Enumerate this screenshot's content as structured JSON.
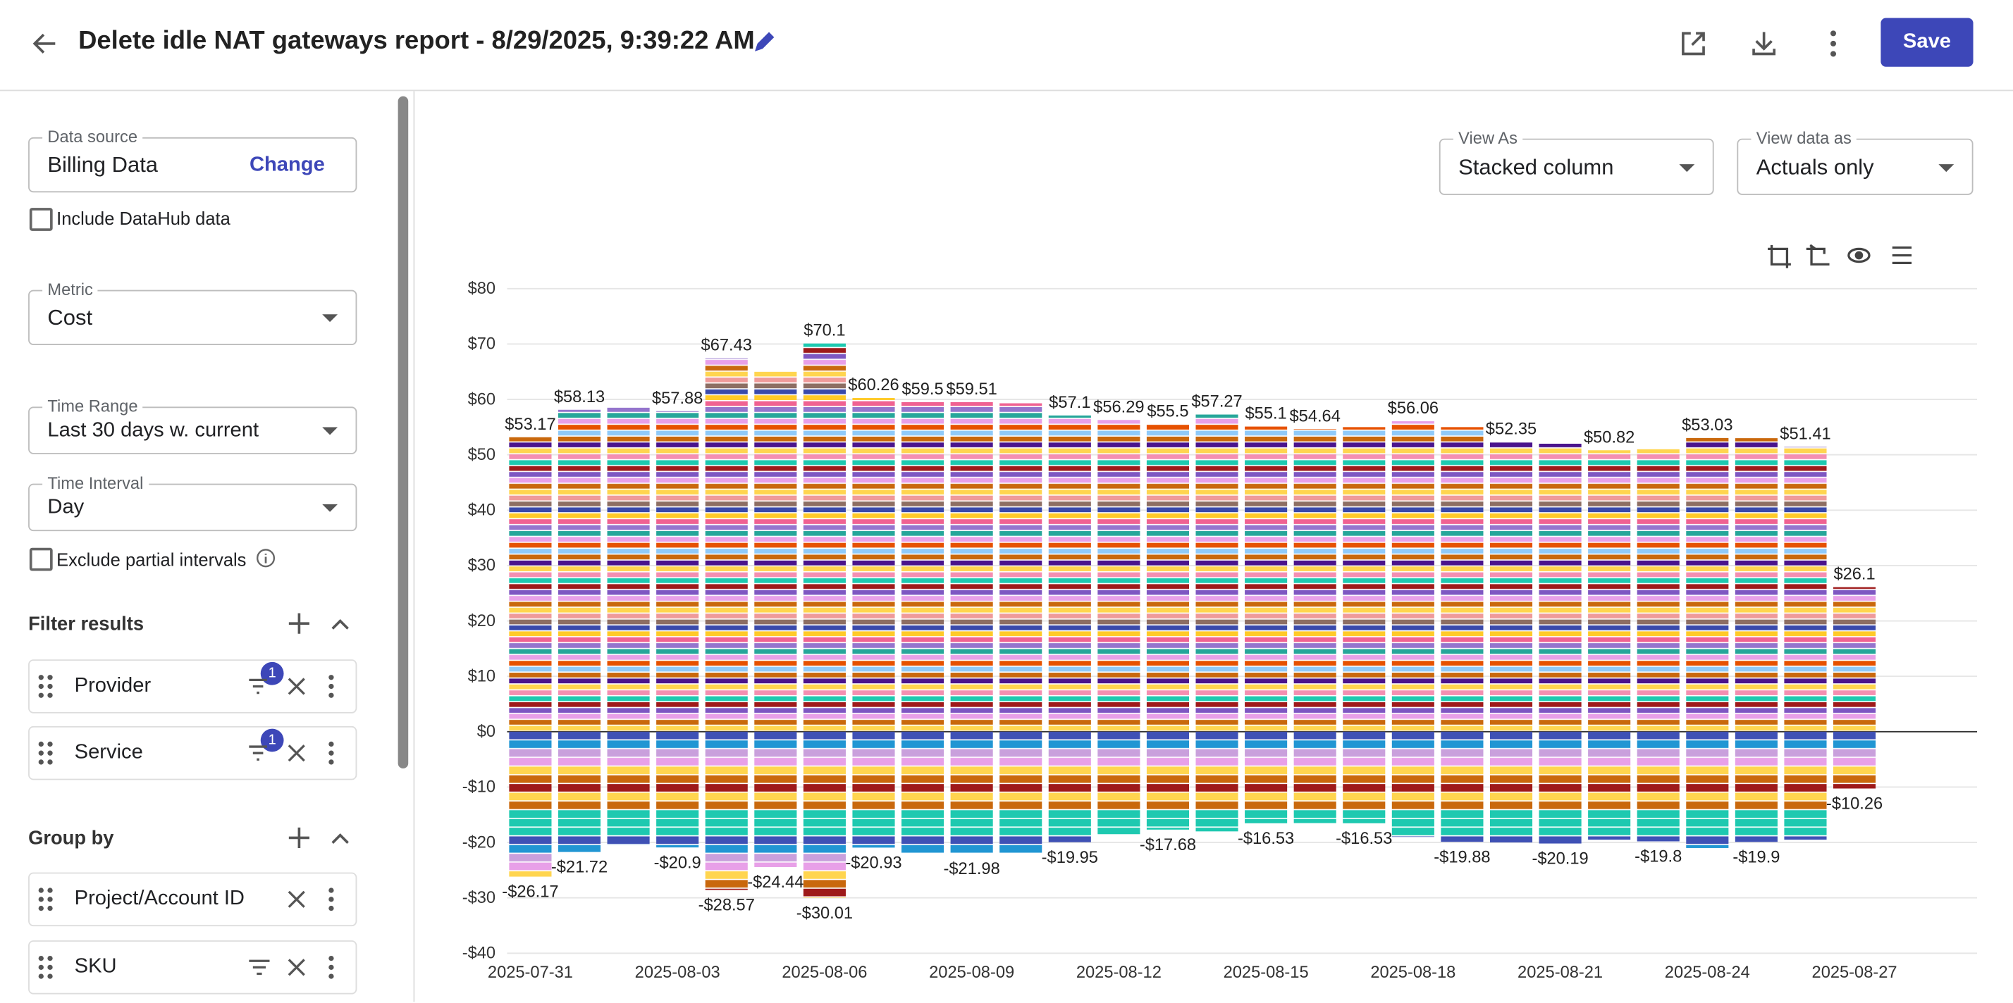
{
  "header": {
    "title": "Delete idle NAT gateways report - 8/29/2025, 9:39:22 AM",
    "save": "Save"
  },
  "sidebar": {
    "data_source": {
      "label": "Data source",
      "value": "Billing Data",
      "action": "Change"
    },
    "include_datahub": "Include DataHub data",
    "metric": {
      "label": "Metric",
      "value": "Cost"
    },
    "time_range": {
      "label": "Time Range",
      "value": "Last 30 days w. current"
    },
    "time_interval": {
      "label": "Time Interval",
      "value": "Day"
    },
    "exclude_partial": "Exclude partial intervals",
    "filter_results": {
      "title": "Filter results",
      "items": [
        {
          "label": "Provider",
          "badge": 1
        },
        {
          "label": "Service",
          "badge": 1
        }
      ]
    },
    "group_by": {
      "title": "Group by",
      "items": [
        "Project/Account ID",
        "SKU"
      ]
    }
  },
  "controls": {
    "view_as": {
      "label": "View As",
      "value": "Stacked column"
    },
    "view_data_as": {
      "label": "View data as",
      "value": "Actuals only"
    }
  },
  "chart_data": {
    "type": "bar",
    "stacked": true,
    "categories": [
      "2025-07-31",
      null,
      null,
      "2025-08-03",
      null,
      null,
      "2025-08-06",
      null,
      null,
      "2025-08-09",
      null,
      null,
      "2025-08-12",
      null,
      null,
      "2025-08-15",
      null,
      null,
      "2025-08-18",
      null,
      null,
      "2025-08-21",
      null,
      null,
      "2025-08-24",
      null,
      null,
      "2025-08-27"
    ],
    "series": [
      {
        "values": [
          53.17,
          58.13,
          58.5,
          57.88,
          67.43,
          65,
          70.1,
          60.26,
          59.5,
          59.51,
          59.3,
          57.1,
          56.29,
          55.5,
          57.27,
          55.1,
          54.64,
          55,
          56.06,
          55,
          52.35,
          52,
          50.82,
          51,
          53.03,
          53,
          51.41,
          26.1
        ],
        "value_labels": [
          "$53.17",
          "$58.13",
          null,
          "$57.88",
          "$67.43",
          null,
          "$70.1",
          "$60.26",
          "$59.5",
          "$59.51",
          null,
          "$57.1",
          "$56.29",
          "$55.5",
          "$57.27",
          "$55.1",
          "$54.64",
          null,
          "$56.06",
          null,
          "$52.35",
          null,
          "$50.82",
          null,
          "$53.03",
          null,
          "$51.41",
          "$26.1"
        ],
        "segment_colors": [
          "#ffd54f",
          "#c9680c",
          "#e8a0e8",
          "#7e57c2",
          "#9e1a1a",
          "#1ec9b0",
          "#f48fb1",
          "#ffd54f",
          "#4a148c",
          "#c9680c",
          "#90caf9",
          "#e65100",
          "#e8a0e8",
          "#26a69a",
          "#9575cd",
          "#f06292",
          "#ffca28",
          "#3949ab",
          "#8d6e63",
          "#ef9a9a"
        ]
      },
      {
        "values": [
          -26.17,
          -21.72,
          -20.5,
          -20.9,
          -28.57,
          -24.44,
          -30.01,
          -20.93,
          -22,
          -21.98,
          -22,
          -19.95,
          -18.5,
          -17.68,
          -18,
          -16.53,
          -16.5,
          -16.53,
          -19,
          -19.88,
          -20,
          -20.19,
          -19.5,
          -19.8,
          -21,
          -19.9,
          -19.5,
          -10.26
        ],
        "value_labels": [
          "-$26.17",
          "-$21.72",
          null,
          "-$20.9",
          "-$28.57",
          "-$24.44",
          "-$30.01",
          "-$20.93",
          null,
          "-$21.98",
          null,
          "-$19.95",
          null,
          "-$17.68",
          null,
          "-$16.53",
          null,
          "-$16.53",
          null,
          "-$19.88",
          null,
          "-$20.19",
          null,
          "-$19.8",
          null,
          "-$19.9",
          null,
          "-$10.26"
        ],
        "segment_colors": [
          "#3f51b5",
          "#2196d3",
          "#c9a0dc",
          "#e8a0e8",
          "#ffd54f",
          "#c9680c",
          "#9e1a1a",
          "#ffd54f",
          "#c9680c",
          "#1ec9b0",
          "#1ec9b0",
          "#1ec9b0"
        ]
      }
    ],
    "ylim": [
      -40,
      80
    ],
    "yticks": [
      {
        "value": -40,
        "label": "-$40"
      },
      {
        "value": -30,
        "label": "-$30"
      },
      {
        "value": -20,
        "label": "-$20"
      },
      {
        "value": -10,
        "label": "-$10"
      },
      {
        "value": 0,
        "label": "$0"
      },
      {
        "value": 10,
        "label": "$10"
      },
      {
        "value": 20,
        "label": "$20"
      },
      {
        "value": 30,
        "label": "$30"
      },
      {
        "value": 40,
        "label": "$40"
      },
      {
        "value": 50,
        "label": "$50"
      },
      {
        "value": 60,
        "label": "$60"
      },
      {
        "value": 70,
        "label": "$70"
      },
      {
        "value": 80,
        "label": "$80"
      }
    ],
    "grid": true
  }
}
